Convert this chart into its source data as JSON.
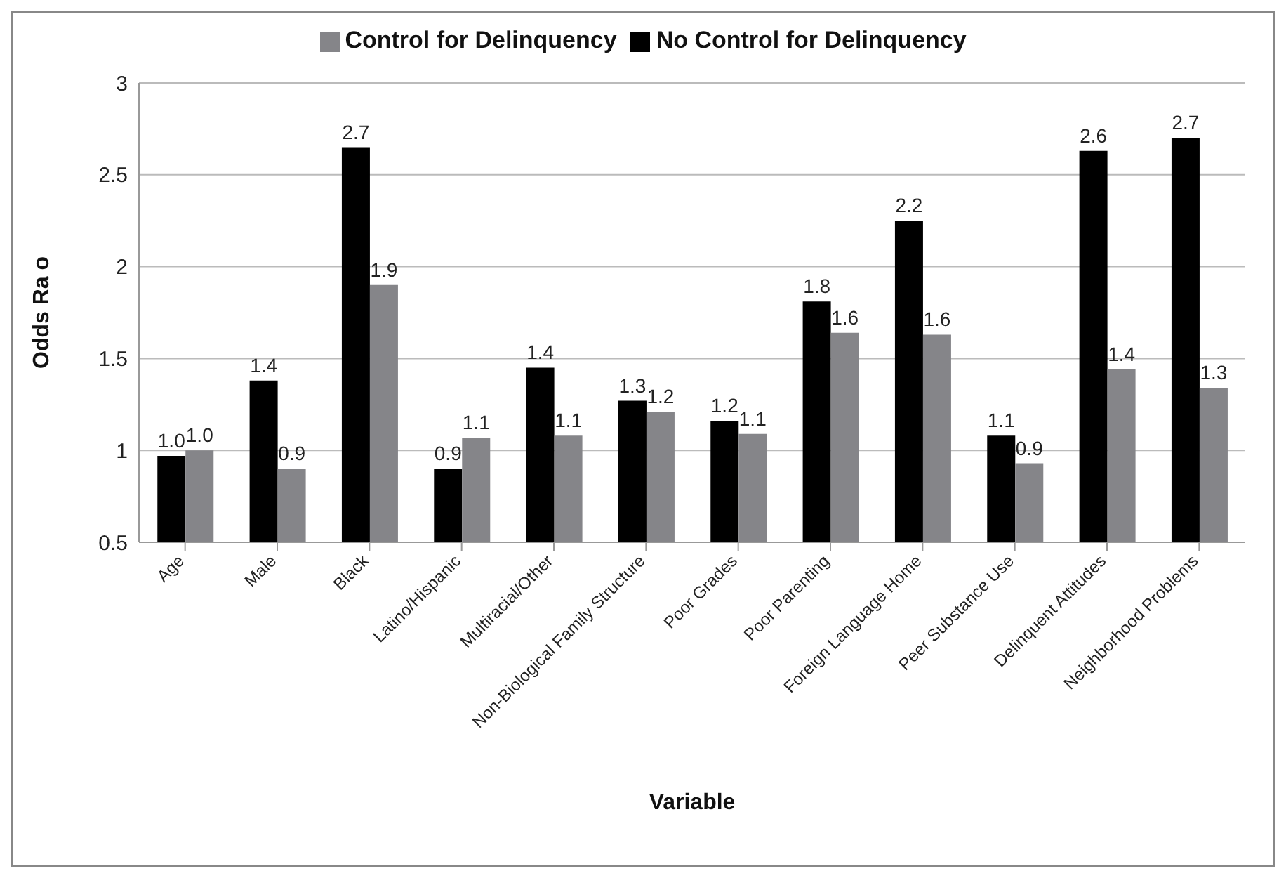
{
  "chart_data": {
    "type": "bar",
    "xlabel": "Variable",
    "ylabel": "Odds Ra o",
    "categories": [
      "Age",
      "Male",
      "Black",
      "Latino/Hispanic",
      "Multiracial/Other",
      "Non-Biological Family Structure",
      "Poor Grades",
      "Poor Parenting",
      "Foreign Language Home",
      "Peer Substance Use",
      "Delinquent Attitudes",
      "Neighborhood Problems"
    ],
    "series": [
      {
        "name": "No Control for Delinquency",
        "color": "#000000",
        "values": [
          0.97,
          1.38,
          2.65,
          0.9,
          1.45,
          1.27,
          1.16,
          1.81,
          2.25,
          1.08,
          2.63,
          2.7
        ],
        "value_labels": [
          "1.0",
          "1.4",
          "2.7",
          "0.9",
          "1.4",
          "1.3",
          "1.2",
          "1.8",
          "2.2",
          "1.1",
          "2.6",
          "2.7"
        ]
      },
      {
        "name": "Control for Delinquency",
        "color": "#858589",
        "values": [
          1.0,
          0.9,
          1.9,
          1.07,
          1.08,
          1.21,
          1.09,
          1.64,
          1.63,
          0.93,
          1.44,
          1.34
        ],
        "value_labels": [
          "1.0",
          "0.9",
          "1.9",
          "1.1",
          "1.1",
          "1.2",
          "1.1",
          "1.6",
          "1.6",
          "0.9",
          "1.4",
          "1.3"
        ]
      }
    ],
    "ylim": [
      0.5,
      3
    ],
    "yticks": [
      0.5,
      1,
      1.5,
      2,
      2.5,
      3
    ],
    "grid": "y",
    "legend": "top"
  }
}
